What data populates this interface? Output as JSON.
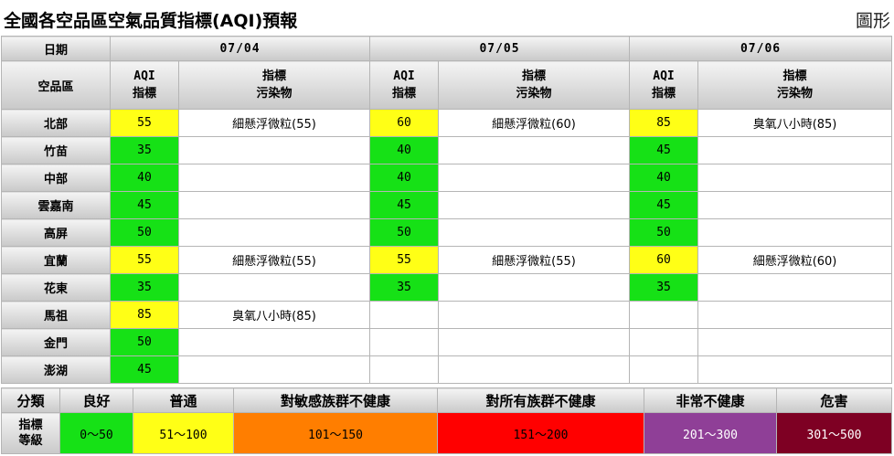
{
  "page": {
    "title": "全國各空品區空氣品質指標(AQI)預報",
    "chart_link": "圖形"
  },
  "header": {
    "date_label": "日期",
    "region_label": "空品區",
    "aqi_label": [
      "AQI",
      "指標"
    ],
    "pollutant_label": [
      "指標",
      "污染物"
    ],
    "dates": [
      "07/04",
      "07/05",
      "07/06"
    ]
  },
  "rows": [
    {
      "region": "北部",
      "d": [
        {
          "aqi": "55",
          "level": "mod",
          "pollutant": "細懸浮微粒(55)"
        },
        {
          "aqi": "60",
          "level": "mod",
          "pollutant": "細懸浮微粒(60)"
        },
        {
          "aqi": "85",
          "level": "mod",
          "pollutant": "臭氧八小時(85)"
        }
      ]
    },
    {
      "region": "竹苗",
      "d": [
        {
          "aqi": "35",
          "level": "good",
          "pollutant": ""
        },
        {
          "aqi": "40",
          "level": "good",
          "pollutant": ""
        },
        {
          "aqi": "45",
          "level": "good",
          "pollutant": ""
        }
      ]
    },
    {
      "region": "中部",
      "d": [
        {
          "aqi": "40",
          "level": "good",
          "pollutant": ""
        },
        {
          "aqi": "40",
          "level": "good",
          "pollutant": ""
        },
        {
          "aqi": "40",
          "level": "good",
          "pollutant": ""
        }
      ]
    },
    {
      "region": "雲嘉南",
      "d": [
        {
          "aqi": "45",
          "level": "good",
          "pollutant": ""
        },
        {
          "aqi": "45",
          "level": "good",
          "pollutant": ""
        },
        {
          "aqi": "45",
          "level": "good",
          "pollutant": ""
        }
      ]
    },
    {
      "region": "高屏",
      "d": [
        {
          "aqi": "50",
          "level": "good",
          "pollutant": ""
        },
        {
          "aqi": "50",
          "level": "good",
          "pollutant": ""
        },
        {
          "aqi": "50",
          "level": "good",
          "pollutant": ""
        }
      ]
    },
    {
      "region": "宜蘭",
      "d": [
        {
          "aqi": "55",
          "level": "mod",
          "pollutant": "細懸浮微粒(55)"
        },
        {
          "aqi": "55",
          "level": "mod",
          "pollutant": "細懸浮微粒(55)"
        },
        {
          "aqi": "60",
          "level": "mod",
          "pollutant": "細懸浮微粒(60)"
        }
      ]
    },
    {
      "region": "花東",
      "d": [
        {
          "aqi": "35",
          "level": "good",
          "pollutant": ""
        },
        {
          "aqi": "35",
          "level": "good",
          "pollutant": ""
        },
        {
          "aqi": "35",
          "level": "good",
          "pollutant": ""
        }
      ]
    },
    {
      "region": "馬祖",
      "d": [
        {
          "aqi": "85",
          "level": "mod",
          "pollutant": "臭氧八小時(85)"
        },
        {
          "aqi": "",
          "level": "",
          "pollutant": ""
        },
        {
          "aqi": "",
          "level": "",
          "pollutant": ""
        }
      ]
    },
    {
      "region": "金門",
      "d": [
        {
          "aqi": "50",
          "level": "good",
          "pollutant": ""
        },
        {
          "aqi": "",
          "level": "",
          "pollutant": ""
        },
        {
          "aqi": "",
          "level": "",
          "pollutant": ""
        }
      ]
    },
    {
      "region": "澎湖",
      "d": [
        {
          "aqi": "45",
          "level": "good",
          "pollutant": ""
        },
        {
          "aqi": "",
          "level": "",
          "pollutant": ""
        },
        {
          "aqi": "",
          "level": "",
          "pollutant": ""
        }
      ]
    }
  ],
  "level_colors": {
    "good": "#16e116",
    "mod": "#ffff16"
  },
  "legend": {
    "category_label": "分類",
    "level_label": [
      "指標",
      "等級"
    ],
    "items": [
      {
        "name": "良好",
        "range": "0～50",
        "color": "#16e116"
      },
      {
        "name": "普通",
        "range": "51～100",
        "color": "#ffff16"
      },
      {
        "name": "對敏感族群不健康",
        "range": "101～150",
        "color": "#ff7e00"
      },
      {
        "name": "對所有族群不健康",
        "range": "151～200",
        "color": "#ff0000"
      },
      {
        "name": "非常不健康",
        "range": "201～300",
        "color": "#8f3f97"
      },
      {
        "name": "危害",
        "range": "301～500",
        "color": "#7e0023"
      }
    ]
  }
}
